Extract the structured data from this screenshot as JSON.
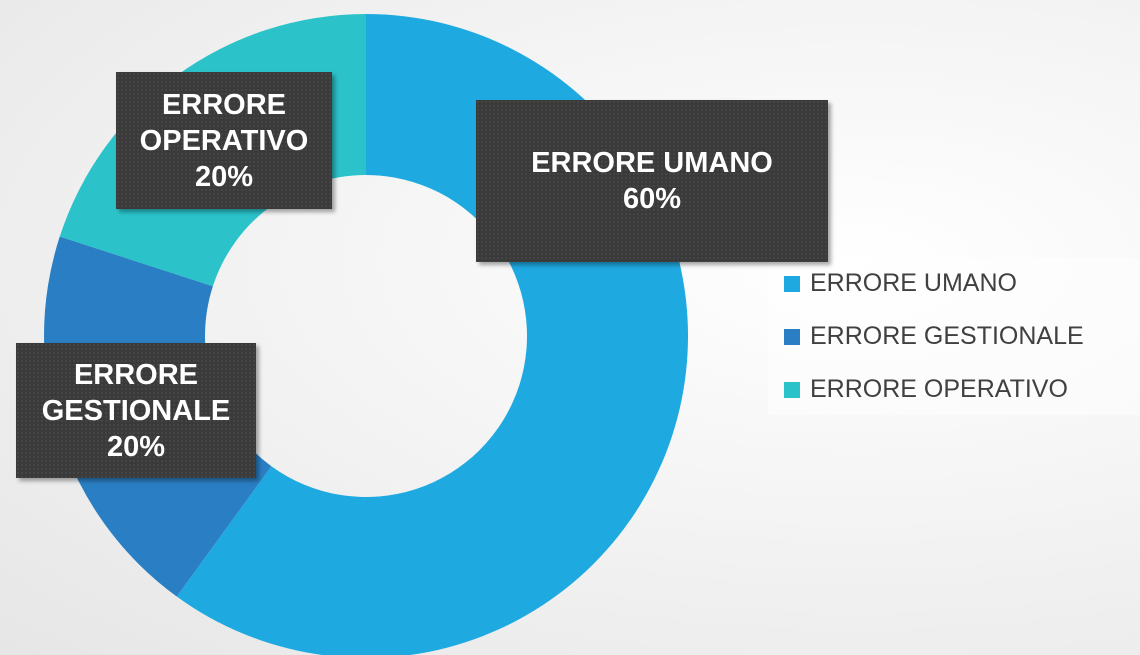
{
  "chart_data": {
    "type": "donut",
    "categories": [
      "ERRORE UMANO",
      "ERRORE GESTIONALE",
      "ERRORE OPERATIVO"
    ],
    "values": [
      60,
      20,
      20
    ],
    "value_labels": [
      "60%",
      "20%",
      "20%"
    ],
    "colors": [
      "#1fa9e1",
      "#2a7fc4",
      "#2bc3c9"
    ],
    "legend": "right"
  }
}
